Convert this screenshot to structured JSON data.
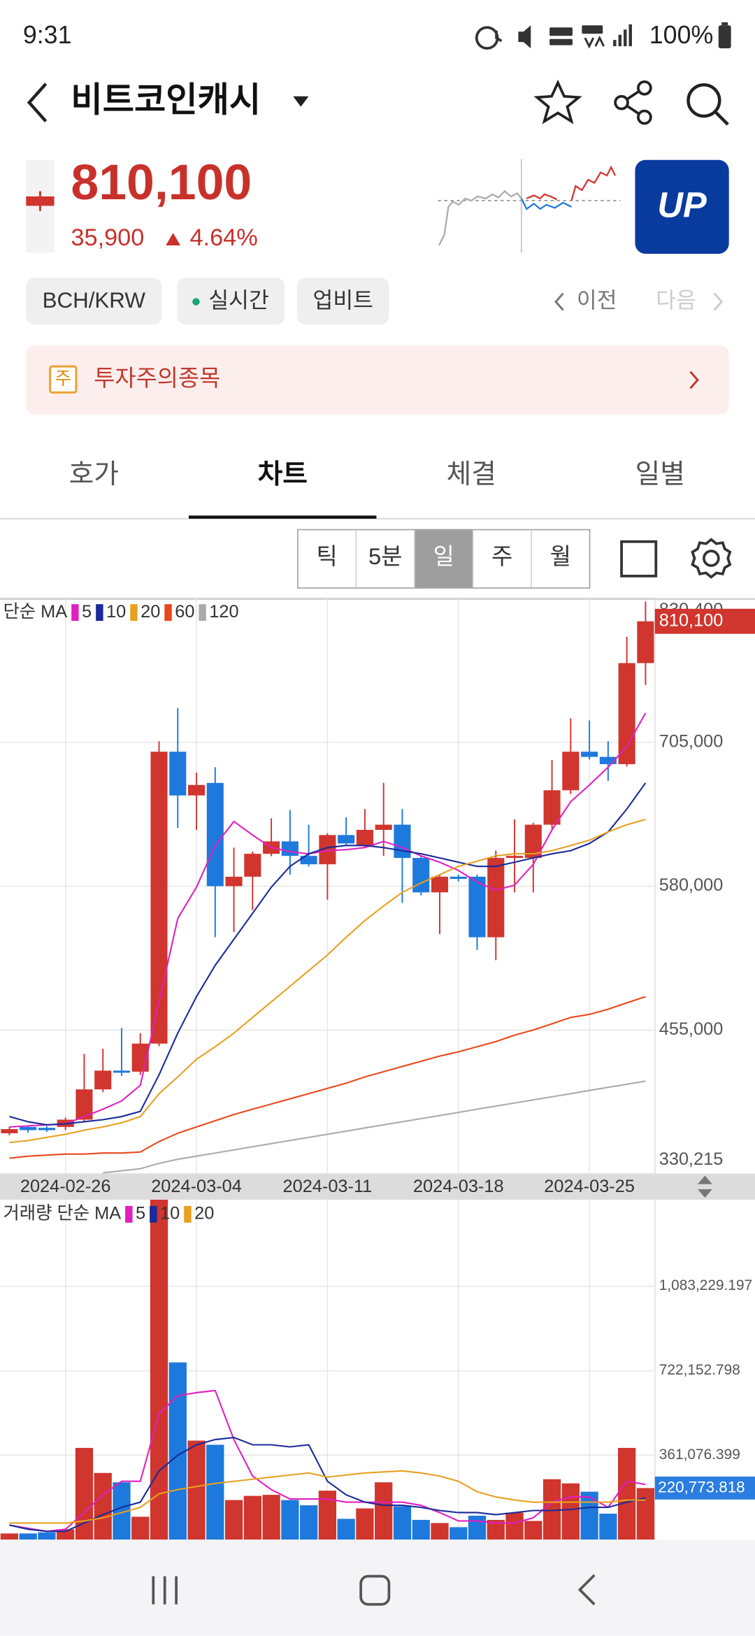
{
  "status_bar": {
    "time": "9:31",
    "battery": "100%"
  },
  "header": {
    "title": "비트코인캐시",
    "price": "810,100",
    "change": "35,900",
    "change_rate": "4.64%",
    "logo": "UP"
  },
  "chips": [
    "BCH/KRW",
    "실시간",
    "업비트"
  ],
  "nav": {
    "prev": "이전",
    "next": "다음"
  },
  "warning": {
    "badge": "주",
    "text": "투자주의종목"
  },
  "tabs": [
    "호가",
    "차트",
    "체결",
    "일별"
  ],
  "intervals": [
    "틱",
    "5분",
    "일",
    "주",
    "월"
  ],
  "chart_data": [
    {
      "type": "candlestick",
      "legend_title": "단순 MA",
      "up_color": "#d0352e",
      "down_color": "#1e79dc",
      "categories": [
        null,
        null,
        null,
        "2024-02-26",
        null,
        null,
        null,
        null,
        null,
        null,
        "2024-03-04",
        null,
        null,
        null,
        null,
        null,
        null,
        "2024-03-11",
        null,
        null,
        null,
        null,
        null,
        null,
        "2024-03-18",
        null,
        null,
        null,
        null,
        null,
        null,
        "2024-03-25",
        null,
        null,
        null
      ],
      "open": [
        365300,
        370800,
        370000,
        370800,
        377100,
        403400,
        419700,
        418800,
        443200,
        696800,
        658800,
        669700,
        580000,
        588200,
        608100,
        618900,
        606300,
        599000,
        624400,
        615300,
        628900,
        633400,
        604500,
        574600,
        588200,
        588200,
        535600,
        604500,
        604500,
        633400,
        663300,
        696800,
        692300,
        686000,
        773800
      ],
      "high": [
        370800,
        372000,
        371500,
        379000,
        434200,
        438700,
        456800,
        452300,
        705900,
        734900,
        678700,
        683300,
        613500,
        610000,
        638900,
        646100,
        633400,
        626000,
        639800,
        647000,
        669700,
        647000,
        606000,
        590000,
        590000,
        590000,
        610800,
        638000,
        635000,
        689600,
        725800,
        724000,
        705900,
        796500,
        827300
      ],
      "low": [
        363500,
        366000,
        366500,
        368000,
        375300,
        401000,
        415000,
        416000,
        441000,
        630700,
        628900,
        535600,
        540100,
        559200,
        606000,
        590000,
        597000,
        568200,
        615000,
        613000,
        606300,
        565500,
        572000,
        538300,
        584000,
        524700,
        515700,
        574600,
        574600,
        630000,
        660000,
        690000,
        671500,
        684000,
        754800
      ],
      "close": [
        368900,
        368000,
        368000,
        377100,
        403400,
        419700,
        417900,
        443200,
        696800,
        658800,
        667900,
        580000,
        588200,
        608100,
        618900,
        606300,
        599000,
        624400,
        617100,
        628900,
        633400,
        604500,
        574600,
        588200,
        586300,
        535600,
        604500,
        606300,
        633400,
        663300,
        696800,
        692300,
        686000,
        773800,
        810100
      ],
      "current_label": "810,100",
      "ylim": [
        330215,
        830400
      ],
      "yticks": [
        {
          "value": 330215,
          "label": "330,215"
        },
        {
          "value": 455000,
          "label": "455,000"
        },
        {
          "value": 580000,
          "label": "580,000"
        },
        {
          "value": 705000,
          "label": "705,000"
        },
        {
          "value": 830400,
          "label": "830,400"
        }
      ],
      "grid": true,
      "series": [
        {
          "name": "5",
          "color": "#e020c0",
          "values": [
            370800,
            371700,
            372600,
            373500,
            379800,
            386200,
            393400,
            407000,
            479500,
            551900,
            579100,
            615300,
            636200,
            624400,
            613500,
            609900,
            608100,
            610800,
            611700,
            613500,
            618900,
            613500,
            606300,
            600800,
            593600,
            583600,
            576400,
            580900,
            599000,
            628900,
            653400,
            667900,
            683300,
            701400,
            730400
          ]
        },
        {
          "name": "10",
          "color": "#1a2a9a",
          "values": [
            379800,
            375300,
            372600,
            373500,
            375300,
            377100,
            379800,
            384300,
            416100,
            452300,
            484000,
            511200,
            533800,
            556400,
            579100,
            597200,
            608100,
            613500,
            615300,
            615300,
            613500,
            610800,
            608100,
            604500,
            600800,
            597200,
            597200,
            600800,
            604500,
            608100,
            610800,
            617100,
            627100,
            647000,
            669700
          ]
        },
        {
          "name": "20",
          "color": "#e8a020",
          "values": [
            357200,
            359000,
            361700,
            364400,
            368000,
            370800,
            374400,
            379800,
            399700,
            414200,
            429600,
            440500,
            452300,
            465900,
            479500,
            493000,
            506600,
            520200,
            535600,
            550100,
            562800,
            574600,
            582700,
            590000,
            597200,
            601700,
            606300,
            608100,
            608100,
            610800,
            615300,
            619900,
            627100,
            633400,
            638000
          ]
        },
        {
          "name": "60",
          "color": "#e8481a",
          "values": [
            343600,
            345400,
            346300,
            347200,
            347200,
            348100,
            348100,
            349000,
            358100,
            365300,
            370800,
            376200,
            381600,
            386200,
            390700,
            395200,
            399700,
            404300,
            408800,
            414200,
            418800,
            423300,
            427800,
            432400,
            436000,
            440500,
            445000,
            450500,
            455000,
            460400,
            465900,
            468600,
            473100,
            478600,
            484000
          ]
        },
        {
          "name": "120",
          "color": "#aaaaaa",
          "values": [
            null,
            null,
            null,
            null,
            null,
            330900,
            332700,
            334500,
            339100,
            342700,
            345400,
            348100,
            350800,
            353600,
            356300,
            359000,
            361700,
            364400,
            367100,
            369900,
            372600,
            375300,
            378000,
            380700,
            383400,
            386200,
            388900,
            391600,
            394300,
            397000,
            399700,
            402500,
            405200,
            407900,
            410600
          ]
        }
      ]
    },
    {
      "type": "bar",
      "legend_title": "거래량 단순 MA",
      "current_color": "#2a7de1",
      "values": [
        26700,
        26700,
        31200,
        44600,
        392300,
        285300,
        245200,
        98100,
        1520000,
        757800,
        423500,
        405700,
        169400,
        187200,
        191700,
        169400,
        147100,
        209500,
        89200,
        133700,
        245200,
        142600,
        84700,
        71300,
        53500,
        102500,
        84700,
        115900,
        80200,
        258500,
        240700,
        205100,
        111400,
        392300,
        220773.818
      ],
      "current_label": "220,773.818",
      "ylim": [
        0,
        1453000
      ],
      "yticks": [
        {
          "value": 361076.399,
          "label": "361,076.399"
        },
        {
          "value": 722152.798,
          "label": "722,152.798"
        },
        {
          "value": 1083229.197,
          "label": "1,083,229.197"
        }
      ],
      "grid": true,
      "series": [
        {
          "name": "5",
          "color": "#e020c0",
          "values": [
            62400,
            49000,
            35700,
            44600,
            115900,
            191700,
            249600,
            249600,
            539400,
            615200,
            628500,
            637500,
            427900,
            271900,
            214000,
            173900,
            173900,
            173900,
            160500,
            160500,
            160500,
            160500,
            147100,
            115900,
            80200,
            80200,
            71300,
            71300,
            93600,
            160500,
            182800,
            182800,
            138200,
            249600,
            236300
          ]
        },
        {
          "name": "10",
          "color": "#1a2a9a",
          "values": [
            62400,
            44600,
            35700,
            35700,
            71300,
            107000,
            138200,
            160500,
            294200,
            361100,
            405700,
            427900,
            436900,
            405700,
            405700,
            396700,
            405700,
            249600,
            191700,
            160500,
            147100,
            147100,
            138200,
            124800,
            115900,
            115900,
            107000,
            115900,
            124800,
            124800,
            129300,
            138200,
            138200,
            160500,
            178300
          ]
        },
        {
          "name": "20",
          "color": "#e8a020",
          "values": [
            71300,
            71300,
            71300,
            71300,
            80200,
            93600,
            115900,
            138200,
            196100,
            214000,
            227300,
            240700,
            249600,
            258500,
            267500,
            276400,
            285300,
            267500,
            276400,
            285300,
            289800,
            294200,
            285300,
            271900,
            249600,
            205100,
            182800,
            169400,
            160500,
            160500,
            160500,
            160500,
            160500,
            169400,
            169400
          ]
        }
      ]
    }
  ]
}
